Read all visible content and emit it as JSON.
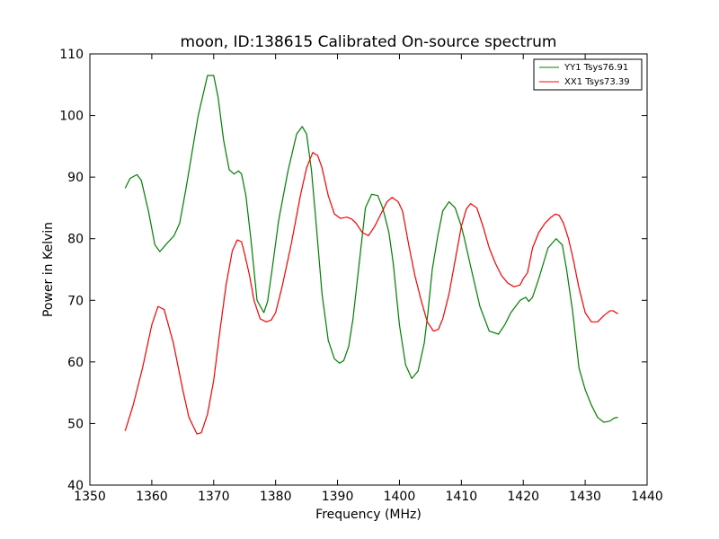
{
  "chart_data": {
    "type": "line",
    "title": "moon, ID:138615 Calibrated On-source spectrum",
    "xlabel": "Frequency (MHz)",
    "ylabel": "Power in Kelvin",
    "xlim": [
      1350,
      1440
    ],
    "ylim": [
      40,
      110
    ],
    "xticks": [
      1350,
      1360,
      1370,
      1380,
      1390,
      1400,
      1410,
      1420,
      1430,
      1440
    ],
    "yticks": [
      40,
      50,
      60,
      70,
      80,
      90,
      100,
      110
    ],
    "grid": false,
    "legend": "top-right",
    "series": [
      {
        "name": "YY1 Tsys76.91",
        "color": "#008000",
        "x": [
          1355.7,
          1356.5,
          1357.6,
          1358.3,
          1359.5,
          1360.5,
          1361.3,
          1362.5,
          1363.6,
          1364.5,
          1365.5,
          1367.5,
          1369.0,
          1370.0,
          1370.7,
          1371.6,
          1372.5,
          1373.3,
          1374.0,
          1374.5,
          1375.2,
          1376.0,
          1377.0,
          1378.1,
          1378.7,
          1379.5,
          1380.5,
          1382.0,
          1383.4,
          1384.3,
          1385.0,
          1385.8,
          1386.5,
          1387.5,
          1388.5,
          1389.5,
          1390.3,
          1391.0,
          1391.8,
          1392.5,
          1393.5,
          1394.5,
          1395.5,
          1396.5,
          1397.3,
          1398.3,
          1399.0,
          1400.0,
          1401.0,
          1402.0,
          1403.0,
          1404.0,
          1404.6,
          1405.3,
          1406.2,
          1407.0,
          1408.0,
          1409.0,
          1410.0,
          1410.5,
          1411.5,
          1413.0,
          1414.5,
          1416.0,
          1417.0,
          1418.0,
          1419.5,
          1420.4,
          1420.9,
          1421.5,
          1422.5,
          1424.0,
          1425.3,
          1426.3,
          1427.0,
          1428.0,
          1429.0,
          1430.0,
          1431.0,
          1432.0,
          1433.0,
          1434.0,
          1434.7,
          1435.3
        ],
        "values": [
          88.2,
          89.8,
          90.4,
          89.5,
          84.3,
          79.0,
          77.9,
          79.3,
          80.5,
          82.5,
          88.0,
          100.0,
          106.5,
          106.5,
          103.0,
          96.0,
          91.2,
          90.5,
          91.0,
          90.5,
          87.0,
          80.0,
          70.0,
          68.0,
          69.8,
          75.5,
          83.0,
          91.0,
          97.0,
          98.2,
          97.0,
          91.0,
          83.0,
          71.0,
          63.5,
          60.5,
          59.8,
          60.2,
          62.5,
          67.0,
          76.0,
          85.0,
          87.2,
          87.0,
          85.0,
          81.0,
          76.0,
          66.0,
          59.5,
          57.3,
          58.5,
          63.0,
          68.0,
          75.0,
          80.5,
          84.5,
          86.0,
          85.0,
          82.0,
          80.0,
          75.5,
          69.0,
          65.0,
          64.5,
          66.0,
          68.0,
          70.0,
          70.5,
          69.8,
          70.5,
          73.5,
          78.5,
          80.0,
          79.0,
          75.0,
          68.0,
          59.0,
          55.5,
          53.0,
          51.0,
          50.2,
          50.4,
          50.9,
          51.0
        ]
      },
      {
        "name": "XX1 Tsys73.39",
        "color": "#ff0000",
        "x": [
          1355.7,
          1357.0,
          1358.5,
          1360.0,
          1361.0,
          1362.0,
          1363.5,
          1365.0,
          1366.0,
          1367.3,
          1368.0,
          1369.0,
          1370.0,
          1371.0,
          1372.0,
          1373.0,
          1373.8,
          1374.5,
          1375.0,
          1375.8,
          1376.5,
          1377.5,
          1378.5,
          1379.3,
          1380.0,
          1381.0,
          1382.5,
          1384.0,
          1385.0,
          1386.0,
          1386.8,
          1387.5,
          1388.5,
          1389.5,
          1390.5,
          1391.5,
          1392.3,
          1393.0,
          1394.0,
          1395.0,
          1396.0,
          1397.0,
          1398.0,
          1398.8,
          1399.8,
          1400.5,
          1401.5,
          1402.5,
          1403.5,
          1404.5,
          1405.5,
          1406.3,
          1407.0,
          1408.0,
          1409.0,
          1410.0,
          1410.8,
          1411.5,
          1412.5,
          1413.5,
          1414.5,
          1415.5,
          1416.5,
          1417.5,
          1418.5,
          1419.5,
          1420.0,
          1420.7,
          1421.5,
          1422.5,
          1423.5,
          1424.5,
          1425.2,
          1425.8,
          1426.5,
          1427.3,
          1428.0,
          1429.0,
          1430.0,
          1431.0,
          1432.0,
          1433.0,
          1434.0,
          1434.5,
          1435.3
        ],
        "values": [
          48.8,
          53.0,
          59.0,
          66.0,
          69.0,
          68.5,
          63.0,
          55.5,
          51.0,
          48.3,
          48.5,
          51.5,
          57.0,
          65.0,
          72.5,
          78.0,
          79.8,
          79.5,
          77.5,
          74.0,
          70.0,
          67.0,
          66.5,
          66.8,
          68.0,
          72.0,
          79.0,
          87.0,
          91.5,
          94.0,
          93.5,
          91.5,
          87.0,
          84.0,
          83.3,
          83.5,
          83.2,
          82.5,
          81.0,
          80.5,
          82.0,
          84.0,
          86.0,
          86.7,
          86.0,
          84.5,
          79.0,
          74.0,
          70.0,
          66.5,
          65.0,
          65.3,
          67.0,
          71.0,
          76.5,
          82.0,
          84.8,
          85.7,
          85.0,
          82.0,
          78.5,
          76.0,
          74.0,
          72.8,
          72.2,
          72.5,
          73.5,
          74.5,
          78.5,
          81.0,
          82.5,
          83.5,
          84.0,
          83.8,
          82.5,
          80.0,
          77.0,
          72.0,
          68.0,
          66.5,
          66.5,
          67.5,
          68.3,
          68.3,
          67.8
        ]
      }
    ]
  }
}
